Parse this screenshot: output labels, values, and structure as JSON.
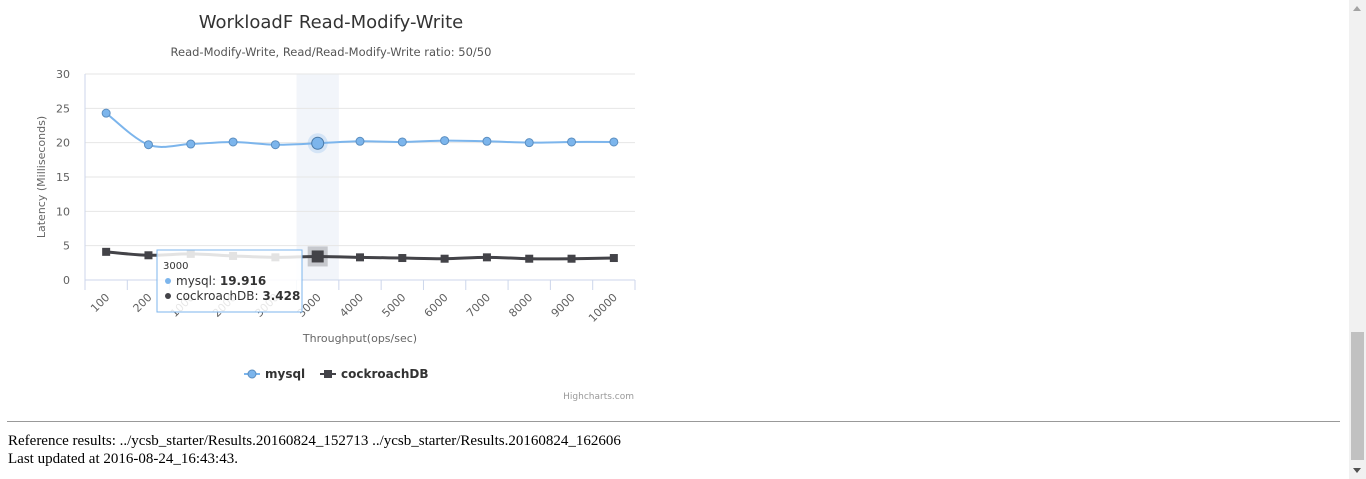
{
  "chart_data": {
    "type": "line",
    "title": "WorkloadF Read-Modify-Write",
    "subtitle": "Read-Modify-Write, Read/Read-Modify-Write ratio: 50/50",
    "xlabel": "Throughput(ops/sec)",
    "ylabel": "Latency (Milliseconds)",
    "ylim": [
      0,
      30
    ],
    "yticks": [
      0,
      5,
      10,
      15,
      20,
      25,
      30
    ],
    "grid": true,
    "legend_position": "bottom-center",
    "categories": [
      "100",
      "200",
      "1000",
      "2000",
      "3000",
      "3000",
      "4000",
      "5000",
      "6000",
      "7000",
      "8000",
      "9000",
      "10000"
    ],
    "series": [
      {
        "name": "mysql",
        "color": "#7cb5ec",
        "marker": "circle",
        "values": [
          24.3,
          19.7,
          19.8,
          20.1,
          19.7,
          19.916,
          20.2,
          20.1,
          20.3,
          20.2,
          20.0,
          20.1,
          20.1
        ]
      },
      {
        "name": "cockroachDB",
        "color": "#434348",
        "marker": "square",
        "values": [
          4.1,
          3.6,
          3.8,
          3.5,
          3.3,
          3.428,
          3.3,
          3.2,
          3.1,
          3.3,
          3.1,
          3.1,
          3.2
        ]
      }
    ],
    "highlight_index": 5,
    "tooltip": {
      "header": "3000",
      "rows": [
        {
          "name": "mysql",
          "value": "19.916",
          "color": "#7cb5ec"
        },
        {
          "name": "cockroachDB",
          "value": "3.428",
          "color": "#434348"
        }
      ]
    },
    "credits": "Highcharts.com"
  },
  "footer": {
    "reference": "Reference results: ../ycsb_starter/Results.20160824_152713 ../ycsb_starter/Results.20160824_162606",
    "updated": "Last updated at 2016-08-24_16:43:43."
  }
}
